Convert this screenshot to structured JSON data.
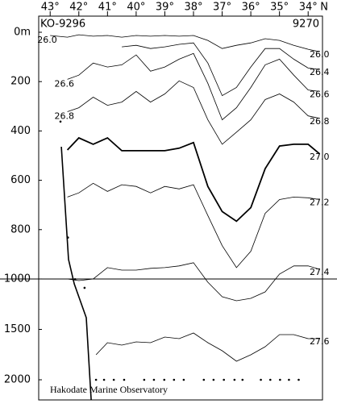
{
  "chart_data": {
    "type": "contour",
    "left_label": "KO-9296",
    "right_label": "9270",
    "annotation": "Hakodate Marine Observatory",
    "x_unit": "N",
    "xlim": [
      43.4,
      33.5
    ],
    "xticks": [
      {
        "value": 43,
        "label": "43°"
      },
      {
        "value": 42,
        "label": "42°"
      },
      {
        "value": 41,
        "label": "41°"
      },
      {
        "value": 40,
        "label": "40°"
      },
      {
        "value": 39,
        "label": "39°"
      },
      {
        "value": 38,
        "label": "38°"
      },
      {
        "value": 37,
        "label": "37°"
      },
      {
        "value": 36,
        "label": "36°"
      },
      {
        "value": 35,
        "label": "35°"
      },
      {
        "value": 34,
        "label": "34°"
      }
    ],
    "ylim": [
      0,
      2200
    ],
    "yticks": [
      {
        "value": 0,
        "label": "0m"
      },
      200,
      400,
      600,
      800,
      1000,
      1500,
      2000
    ],
    "scale_break": 1000,
    "color": "#000000",
    "series": [
      {
        "name": "26.0",
        "label_left": true,
        "line_width": 0.8,
        "x": [
          43,
          42.4,
          42,
          41.5,
          41,
          40.5,
          40,
          39.5,
          39,
          38.5,
          38,
          37.5,
          37,
          36.5,
          36,
          35.5,
          35,
          34.5,
          34,
          33.6
        ],
        "values": [
          13,
          20,
          10,
          16,
          13,
          20,
          13,
          16,
          13,
          16,
          13,
          33,
          66,
          53,
          43,
          26,
          33,
          53,
          69,
          79
        ]
      },
      {
        "name": "26.4",
        "line_width": 0.8,
        "x": [
          40.5,
          40,
          39.5,
          39,
          38.5,
          38,
          37.5,
          37,
          36.5,
          36,
          35.5,
          35,
          34.5,
          34,
          33.6
        ],
        "values": [
          59,
          53,
          66,
          59,
          49,
          43,
          125,
          257,
          224,
          141,
          66,
          66,
          109,
          145,
          151
        ]
      },
      {
        "name": "26.6",
        "label_left": true,
        "line_width": 0.8,
        "x": [
          42.4,
          42,
          41.5,
          41,
          40.5,
          40,
          39.5,
          39,
          38.5,
          38,
          37.5,
          37,
          36.5,
          36,
          35.5,
          35,
          34.5,
          34,
          33.6
        ],
        "values": [
          191,
          174,
          125,
          141,
          132,
          92,
          158,
          141,
          109,
          86,
          207,
          355,
          306,
          224,
          132,
          109,
          174,
          234,
          240
        ]
      },
      {
        "name": "26.8",
        "label_left": true,
        "line_width": 0.8,
        "x": [
          42.4,
          42,
          41.5,
          41,
          40.5,
          40,
          39.5,
          39,
          38.5,
          38,
          37.5,
          37,
          36.5,
          36,
          35.5,
          35,
          34.5,
          34,
          33.6
        ],
        "values": [
          322,
          306,
          263,
          296,
          283,
          240,
          283,
          250,
          197,
          224,
          355,
          454,
          405,
          355,
          273,
          250,
          283,
          339,
          349
        ]
      },
      {
        "name": "27.0",
        "line_width": 1.8,
        "x": [
          42.4,
          42,
          41.5,
          41,
          40.5,
          40,
          39.5,
          39,
          38.5,
          38,
          37.5,
          37,
          36.5,
          36,
          35.5,
          35,
          34.5,
          34,
          33.6
        ],
        "values": [
          477,
          428,
          454,
          428,
          480,
          480,
          480,
          480,
          470,
          447,
          625,
          727,
          766,
          711,
          553,
          461,
          454,
          454,
          493
        ]
      },
      {
        "name": "27.2",
        "line_width": 0.8,
        "x": [
          42.4,
          42,
          41.5,
          41,
          40.5,
          40,
          39.5,
          39,
          38.5,
          38,
          37.5,
          37,
          36.5,
          36,
          35.5,
          35,
          34.5,
          34,
          33.6
        ],
        "values": [
          668,
          651,
          612,
          645,
          618,
          625,
          651,
          625,
          635,
          618,
          743,
          865,
          954,
          888,
          734,
          678,
          668,
          671,
          678
        ]
      },
      {
        "name": "27.4",
        "line_width": 0.8,
        "x": [
          42.4,
          42,
          41.5,
          41,
          40.5,
          40,
          39.5,
          39,
          38.5,
          38,
          37.5,
          37,
          36.5,
          36,
          35.5,
          35,
          34.5,
          34,
          33.6
        ],
        "values": [
          1000,
          1016,
          1000,
          954,
          964,
          964,
          957,
          954,
          947,
          934,
          1032,
          1176,
          1216,
          1192,
          1128,
          980,
          947,
          947,
          961
        ]
      },
      {
        "name": "27.6",
        "line_width": 0.8,
        "x": [
          41.4,
          41,
          40.5,
          40,
          39.5,
          39,
          38.5,
          38,
          37.5,
          37,
          36.5,
          36,
          35.5,
          35,
          34.5,
          34,
          33.6
        ],
        "values": [
          1752,
          1632,
          1656,
          1624,
          1632,
          1576,
          1592,
          1536,
          1632,
          1712,
          1816,
          1752,
          1672,
          1552,
          1552,
          1592,
          1592
        ]
      }
    ],
    "bottom": {
      "line_width": 1.6,
      "x": [
        42.61,
        42.36,
        42.16,
        41.94,
        41.74,
        41.57
      ],
      "values": [
        464,
        921,
        1048,
        1224,
        1384,
        2200
      ]
    },
    "samples": {
      "x": [
        42.64,
        42.38,
        42.13,
        41.8,
        41.4,
        41.12,
        40.78,
        40.42,
        39.72,
        39.38,
        39.02,
        38.68,
        38.34,
        37.64,
        37.3,
        36.94,
        36.57,
        36.29,
        35.65,
        35.32,
        34.98,
        34.67,
        34.33
      ],
      "values": [
        362,
        832,
        1003,
        1088,
        2000,
        2000,
        2000,
        2000,
        2000,
        2000,
        2000,
        2000,
        2000,
        2000,
        2000,
        2000,
        2000,
        2000,
        2000,
        2000,
        2000,
        2000,
        2000
      ]
    }
  }
}
